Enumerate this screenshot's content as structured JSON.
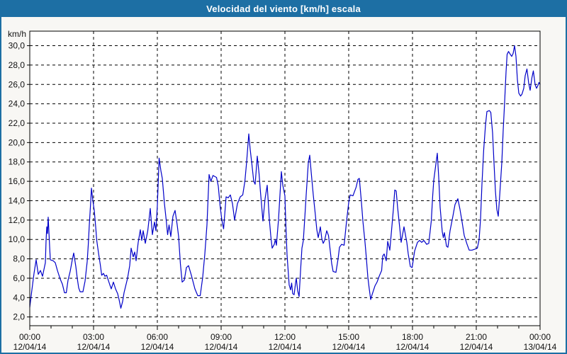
{
  "header": {
    "title": "Velocidad del viento [km/h] escala"
  },
  "colors": {
    "titlebar_bg": "#1d6fa4",
    "titlebar_text": "#ffffff",
    "window_border": "#1d6fa4",
    "window_bg": "#f8f7f4",
    "plot_bg": "#ffffff",
    "axis": "#000000",
    "grid": "#000000",
    "line": "#0000c8",
    "label": "#111111"
  },
  "chart_data": {
    "type": "line",
    "title": "Velocidad del viento [km/h] escala",
    "xlabel": "",
    "ylabel": "km/h",
    "grid": "dashed",
    "legend_position": "none",
    "y_range": [
      1.1,
      31.5
    ],
    "x_range_minutes": [
      0,
      1440
    ],
    "minor_tick_every_minutes": 60,
    "y_ticks": [
      {
        "value": 30,
        "label": "30,0"
      },
      {
        "value": 28,
        "label": "28,0"
      },
      {
        "value": 26,
        "label": "26,0"
      },
      {
        "value": 24,
        "label": "24,0"
      },
      {
        "value": 22,
        "label": "22,0"
      },
      {
        "value": 20,
        "label": "20,0"
      },
      {
        "value": 18,
        "label": "18,0"
      },
      {
        "value": 16,
        "label": "16,0"
      },
      {
        "value": 14,
        "label": "14,0"
      },
      {
        "value": 12,
        "label": "12,0"
      },
      {
        "value": 10,
        "label": "10,0"
      },
      {
        "value": 8,
        "label": "8,0"
      },
      {
        "value": 6,
        "label": "6,0"
      },
      {
        "value": 4,
        "label": "4,0"
      },
      {
        "value": 2,
        "label": "2,0"
      }
    ],
    "x_ticks": [
      {
        "minutes": 0,
        "time": "00:00",
        "date": "12/04/14"
      },
      {
        "minutes": 180,
        "time": "03:00",
        "date": "12/04/14"
      },
      {
        "minutes": 360,
        "time": "06:00",
        "date": "12/04/14"
      },
      {
        "minutes": 540,
        "time": "09:00",
        "date": "12/04/14"
      },
      {
        "minutes": 720,
        "time": "12:00",
        "date": "12/04/14"
      },
      {
        "minutes": 900,
        "time": "15:00",
        "date": "12/04/14"
      },
      {
        "minutes": 1080,
        "time": "18:00",
        "date": "12/04/14"
      },
      {
        "minutes": 1260,
        "time": "21:00",
        "date": "12/04/14"
      },
      {
        "minutes": 1440,
        "time": "00:00",
        "date": "13/04/14"
      }
    ],
    "series": [
      {
        "name": "Velocidad del viento",
        "unit": "km/h",
        "points": [
          [
            0,
            3.0
          ],
          [
            6,
            4.8
          ],
          [
            12,
            6.5
          ],
          [
            18,
            7.9
          ],
          [
            24,
            6.4
          ],
          [
            30,
            6.8
          ],
          [
            36,
            6.2
          ],
          [
            44,
            7.6
          ],
          [
            46,
            9.9
          ],
          [
            48,
            11.3
          ],
          [
            50,
            10.6
          ],
          [
            52,
            12.3
          ],
          [
            56,
            9.3
          ],
          [
            58,
            7.9
          ],
          [
            66,
            7.8
          ],
          [
            72,
            7.6
          ],
          [
            78,
            6.8
          ],
          [
            86,
            5.9
          ],
          [
            92,
            5.4
          ],
          [
            98,
            4.5
          ],
          [
            103,
            4.5
          ],
          [
            108,
            5.8
          ],
          [
            114,
            6.7
          ],
          [
            120,
            7.9
          ],
          [
            124,
            8.6
          ],
          [
            130,
            7.2
          ],
          [
            134,
            6.0
          ],
          [
            138,
            5.0
          ],
          [
            142,
            4.6
          ],
          [
            150,
            4.6
          ],
          [
            156,
            5.7
          ],
          [
            162,
            7.7
          ],
          [
            165,
            9.4
          ],
          [
            168,
            11.5
          ],
          [
            172,
            13.9
          ],
          [
            174,
            15.3
          ],
          [
            178,
            14.0
          ],
          [
            182,
            13.0
          ],
          [
            186,
            11.3
          ],
          [
            189,
            9.9
          ],
          [
            194,
            8.6
          ],
          [
            199,
            7.4
          ],
          [
            203,
            6.3
          ],
          [
            208,
            6.5
          ],
          [
            212,
            6.2
          ],
          [
            217,
            6.3
          ],
          [
            226,
            5.3
          ],
          [
            230,
            4.9
          ],
          [
            236,
            5.6
          ],
          [
            242,
            4.9
          ],
          [
            248,
            4.4
          ],
          [
            252,
            3.8
          ],
          [
            257,
            2.9
          ],
          [
            262,
            3.6
          ],
          [
            266,
            4.5
          ],
          [
            276,
            6.0
          ],
          [
            282,
            7.3
          ],
          [
            286,
            9.1
          ],
          [
            292,
            8.2
          ],
          [
            296,
            8.7
          ],
          [
            300,
            7.8
          ],
          [
            306,
            9.7
          ],
          [
            312,
            11.0
          ],
          [
            316,
            9.9
          ],
          [
            320,
            10.9
          ],
          [
            326,
            9.6
          ],
          [
            333,
            10.9
          ],
          [
            340,
            13.2
          ],
          [
            346,
            10.5
          ],
          [
            352,
            11.8
          ],
          [
            356,
            10.9
          ],
          [
            360,
            13.5
          ],
          [
            365,
            18.4
          ],
          [
            370,
            17.1
          ],
          [
            374,
            16.3
          ],
          [
            380,
            13.7
          ],
          [
            385,
            12.0
          ],
          [
            389,
            10.5
          ],
          [
            393,
            11.5
          ],
          [
            398,
            10.3
          ],
          [
            404,
            12.4
          ],
          [
            410,
            13.0
          ],
          [
            416,
            11.5
          ],
          [
            420,
            10.3
          ],
          [
            425,
            7.5
          ],
          [
            430,
            5.6
          ],
          [
            436,
            5.8
          ],
          [
            442,
            7.1
          ],
          [
            448,
            7.3
          ],
          [
            456,
            6.3
          ],
          [
            466,
            4.9
          ],
          [
            474,
            4.2
          ],
          [
            481,
            4.2
          ],
          [
            488,
            6.1
          ],
          [
            494,
            8.5
          ],
          [
            500,
            11.5
          ],
          [
            506,
            16.7
          ],
          [
            511,
            16.0
          ],
          [
            517,
            16.6
          ],
          [
            527,
            16.4
          ],
          [
            532,
            15.5
          ],
          [
            537,
            13.5
          ],
          [
            542,
            12.0
          ],
          [
            547,
            11.1
          ],
          [
            554,
            14.4
          ],
          [
            560,
            14.3
          ],
          [
            566,
            14.6
          ],
          [
            572,
            13.7
          ],
          [
            578,
            12.0
          ],
          [
            586,
            13.7
          ],
          [
            594,
            14.4
          ],
          [
            601,
            14.6
          ],
          [
            607,
            16.0
          ],
          [
            612,
            18.0
          ],
          [
            618,
            20.9
          ],
          [
            622,
            19.3
          ],
          [
            627,
            17.7
          ],
          [
            632,
            16.0
          ],
          [
            636,
            15.7
          ],
          [
            642,
            18.6
          ],
          [
            647,
            16.8
          ],
          [
            651,
            14.9
          ],
          [
            655,
            13.2
          ],
          [
            658,
            11.9
          ],
          [
            664,
            14.2
          ],
          [
            670,
            15.6
          ],
          [
            676,
            12.1
          ],
          [
            680,
            10.4
          ],
          [
            684,
            9.1
          ],
          [
            690,
            9.5
          ],
          [
            693,
            10.0
          ],
          [
            696,
            9.4
          ],
          [
            702,
            12.1
          ],
          [
            706,
            14.6
          ],
          [
            710,
            17.0
          ],
          [
            714,
            15.6
          ],
          [
            720,
            14.5
          ],
          [
            722,
            12.1
          ],
          [
            726,
            8.4
          ],
          [
            732,
            5.3
          ],
          [
            736,
            4.8
          ],
          [
            739,
            5.5
          ],
          [
            742,
            4.4
          ],
          [
            746,
            4.3
          ],
          [
            750,
            5.5
          ],
          [
            752,
            6.0
          ],
          [
            756,
            4.7
          ],
          [
            760,
            4.1
          ],
          [
            764,
            6.7
          ],
          [
            768,
            9.1
          ],
          [
            772,
            9.9
          ],
          [
            776,
            12.2
          ],
          [
            780,
            14.6
          ],
          [
            786,
            17.9
          ],
          [
            790,
            18.7
          ],
          [
            794,
            17.0
          ],
          [
            800,
            14.6
          ],
          [
            806,
            12.5
          ],
          [
            810,
            11.0
          ],
          [
            814,
            10.2
          ],
          [
            820,
            11.3
          ],
          [
            824,
            10.1
          ],
          [
            828,
            9.6
          ],
          [
            832,
            9.9
          ],
          [
            838,
            10.9
          ],
          [
            843,
            10.4
          ],
          [
            848,
            8.8
          ],
          [
            852,
            7.5
          ],
          [
            856,
            6.7
          ],
          [
            864,
            6.6
          ],
          [
            870,
            8.0
          ],
          [
            874,
            9.2
          ],
          [
            880,
            9.5
          ],
          [
            887,
            9.4
          ],
          [
            894,
            11.9
          ],
          [
            900,
            13.8
          ],
          [
            904,
            14.6
          ],
          [
            912,
            14.5
          ],
          [
            921,
            15.4
          ],
          [
            926,
            16.2
          ],
          [
            930,
            16.3
          ],
          [
            936,
            13.8
          ],
          [
            940,
            11.9
          ],
          [
            946,
            9.7
          ],
          [
            950,
            8.0
          ],
          [
            954,
            6.1
          ],
          [
            958,
            4.9
          ],
          [
            962,
            3.8
          ],
          [
            966,
            4.3
          ],
          [
            974,
            5.2
          ],
          [
            980,
            5.6
          ],
          [
            986,
            6.2
          ],
          [
            993,
            6.8
          ],
          [
            996,
            8.3
          ],
          [
            1000,
            8.5
          ],
          [
            1006,
            7.8
          ],
          [
            1010,
            9.8
          ],
          [
            1016,
            8.9
          ],
          [
            1022,
            11.4
          ],
          [
            1026,
            13.1
          ],
          [
            1030,
            15.1
          ],
          [
            1034,
            15.0
          ],
          [
            1038,
            13.3
          ],
          [
            1044,
            11.2
          ],
          [
            1048,
            9.7
          ],
          [
            1053,
            10.7
          ],
          [
            1056,
            11.3
          ],
          [
            1064,
            9.7
          ],
          [
            1068,
            8.5
          ],
          [
            1074,
            7.2
          ],
          [
            1079,
            7.1
          ],
          [
            1086,
            8.8
          ],
          [
            1094,
            9.7
          ],
          [
            1100,
            9.9
          ],
          [
            1106,
            9.7
          ],
          [
            1112,
            9.9
          ],
          [
            1120,
            9.5
          ],
          [
            1126,
            9.6
          ],
          [
            1133,
            11.9
          ],
          [
            1137,
            14.5
          ],
          [
            1140,
            16.1
          ],
          [
            1150,
            18.9
          ],
          [
            1154,
            16.4
          ],
          [
            1158,
            13.3
          ],
          [
            1164,
            10.8
          ],
          [
            1167,
            10.2
          ],
          [
            1170,
            10.7
          ],
          [
            1176,
            9.3
          ],
          [
            1180,
            9.2
          ],
          [
            1186,
            10.9
          ],
          [
            1194,
            12.4
          ],
          [
            1200,
            13.6
          ],
          [
            1208,
            14.2
          ],
          [
            1214,
            13.1
          ],
          [
            1220,
            11.8
          ],
          [
            1226,
            10.4
          ],
          [
            1234,
            9.5
          ],
          [
            1240,
            8.9
          ],
          [
            1248,
            8.9
          ],
          [
            1256,
            9.0
          ],
          [
            1263,
            9.1
          ],
          [
            1268,
            10.0
          ],
          [
            1272,
            12.1
          ],
          [
            1276,
            15.7
          ],
          [
            1281,
            19.3
          ],
          [
            1286,
            21.8
          ],
          [
            1290,
            23.2
          ],
          [
            1297,
            23.3
          ],
          [
            1301,
            23.1
          ],
          [
            1306,
            21.0
          ],
          [
            1310,
            17.9
          ],
          [
            1314,
            15.0
          ],
          [
            1318,
            13.1
          ],
          [
            1322,
            12.4
          ],
          [
            1326,
            14.5
          ],
          [
            1332,
            17.9
          ],
          [
            1336,
            21.3
          ],
          [
            1340,
            24.2
          ],
          [
            1344,
            27.3
          ],
          [
            1347,
            29.1
          ],
          [
            1351,
            29.4
          ],
          [
            1356,
            29.1
          ],
          [
            1360,
            28.9
          ],
          [
            1364,
            29.2
          ],
          [
            1368,
            30.0
          ],
          [
            1372,
            28.9
          ],
          [
            1376,
            26.5
          ],
          [
            1380,
            25.1
          ],
          [
            1385,
            24.8
          ],
          [
            1389,
            25.0
          ],
          [
            1394,
            25.6
          ],
          [
            1398,
            26.9
          ],
          [
            1403,
            27.6
          ],
          [
            1408,
            26.1
          ],
          [
            1412,
            25.4
          ],
          [
            1417,
            26.7
          ],
          [
            1421,
            27.4
          ],
          [
            1426,
            26.0
          ],
          [
            1430,
            25.6
          ],
          [
            1434,
            25.9
          ],
          [
            1437,
            26.2
          ],
          [
            1440,
            26.0
          ]
        ]
      }
    ]
  }
}
